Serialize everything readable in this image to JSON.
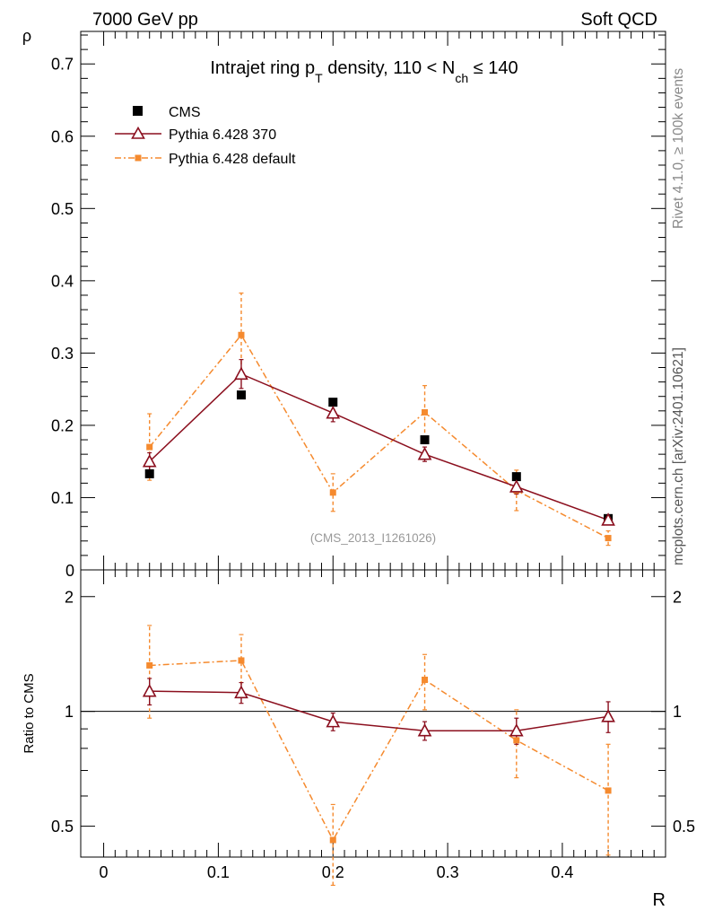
{
  "header": {
    "left": "7000 GeV pp",
    "right": "Soft QCD"
  },
  "side": {
    "rivet": "Rivet 4.1.0, ≥ 100k events",
    "mcplots": "mcplots.cern.ch [arXiv:2401.10621]"
  },
  "colors": {
    "cms": "#000000",
    "p370": "#8b0f1e",
    "pdefault": "#f58a2e",
    "axis": "#000000"
  },
  "chart_data": [
    {
      "id": "main",
      "type": "scatter",
      "title": {
        "prefix": "Intrajet ring p",
        "sub1": "T",
        "mid": " density, 110 < N",
        "sub2": "ch",
        "suffix": " ≤ 140"
      },
      "watermark": "(CMS_2013_I1261026)",
      "ylabel": "ρ",
      "xlim": [
        -0.02,
        0.49
      ],
      "ylim": [
        0,
        0.745
      ],
      "yticks": [
        0.1,
        0.2,
        0.3,
        0.4,
        0.5,
        0.6,
        0.7
      ],
      "ytick_labels": [
        "0.1",
        "0.2",
        "0.3",
        "0.4",
        "0.5",
        "0.6",
        "0.7"
      ],
      "bottom_label": "0",
      "legend_position": "top-left",
      "series": [
        {
          "name": "CMS",
          "style": "square-filled",
          "color": "#000000",
          "x": [
            0.04,
            0.12,
            0.2,
            0.28,
            0.36,
            0.44
          ],
          "y": [
            0.133,
            0.242,
            0.232,
            0.18,
            0.129,
            0.071
          ],
          "err": [
            0.005,
            0.004,
            0.004,
            0.004,
            0.004,
            0.003
          ]
        },
        {
          "name": "Pythia 6.428 370",
          "style": "triangle-open-line",
          "color": "#8b0f1e",
          "x": [
            0.04,
            0.12,
            0.2,
            0.28,
            0.36,
            0.44
          ],
          "y": [
            0.15,
            0.271,
            0.217,
            0.16,
            0.115,
            0.069
          ],
          "err": [
            0.012,
            0.02,
            0.012,
            0.01,
            0.01,
            0.006
          ]
        },
        {
          "name": "Pythia 6.428 default",
          "style": "square-small-dashdot",
          "color": "#f58a2e",
          "x": [
            0.04,
            0.12,
            0.2,
            0.28,
            0.36,
            0.44
          ],
          "y": [
            0.17,
            0.325,
            0.107,
            0.218,
            0.11,
            0.044
          ],
          "err": [
            0.046,
            0.058,
            0.026,
            0.037,
            0.028,
            0.01
          ]
        }
      ]
    },
    {
      "id": "ratio",
      "type": "scatter",
      "ylabel": "Ratio to CMS",
      "xlabel": "R",
      "xlim": [
        -0.02,
        0.49
      ],
      "ylim_log": [
        0.415,
        2.35
      ],
      "yticks": [
        0.5,
        1,
        2
      ],
      "ytick_labels": [
        "0.5",
        "1",
        "2"
      ],
      "xticks": [
        0,
        0.1,
        0.2,
        0.3,
        0.4
      ],
      "xtick_labels": [
        "0",
        "0.1",
        "0.2",
        "0.3",
        "0.4"
      ],
      "reference_line": 1,
      "series": [
        {
          "name": "Pythia 6.428 370",
          "color": "#8b0f1e",
          "x": [
            0.04,
            0.12,
            0.2,
            0.28,
            0.36,
            0.44
          ],
          "y": [
            1.13,
            1.12,
            0.94,
            0.89,
            0.89,
            0.97
          ],
          "err_lo": [
            0.09,
            0.07,
            0.05,
            0.05,
            0.07,
            0.09
          ],
          "err_hi": [
            0.09,
            0.07,
            0.05,
            0.05,
            0.07,
            0.09
          ]
        },
        {
          "name": "Pythia 6.428 default",
          "color": "#f58a2e",
          "x": [
            0.04,
            0.12,
            0.2,
            0.28,
            0.36,
            0.44
          ],
          "y": [
            1.32,
            1.36,
            0.46,
            1.21,
            0.84,
            0.62
          ],
          "err_lo": [
            0.36,
            0.23,
            0.11,
            0.2,
            0.17,
            0.2
          ],
          "err_hi": [
            0.36,
            0.23,
            0.11,
            0.2,
            0.17,
            0.2
          ]
        }
      ]
    }
  ]
}
